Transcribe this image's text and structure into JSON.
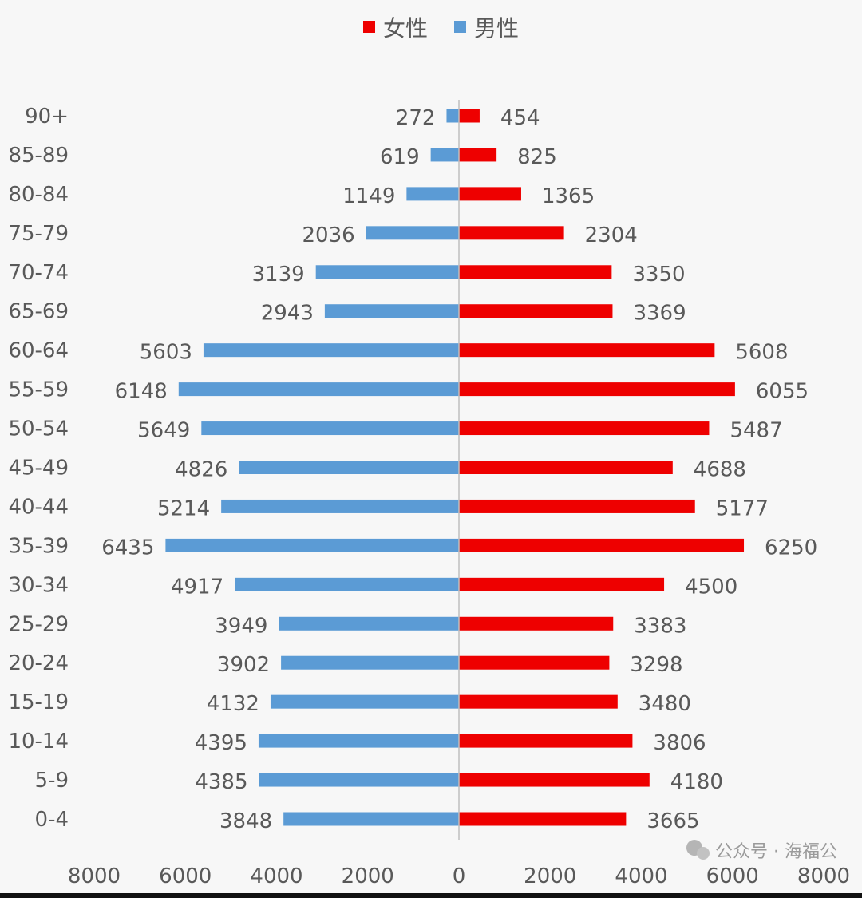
{
  "chart_data": {
    "type": "bar",
    "orientation": "horizontal",
    "subtype": "population-pyramid",
    "categories": [
      "90+",
      "85-89",
      "80-84",
      "75-79",
      "70-74",
      "65-69",
      "60-64",
      "55-59",
      "50-54",
      "45-49",
      "40-44",
      "35-39",
      "30-34",
      "25-29",
      "20-24",
      "15-19",
      "10-14",
      "5-9",
      "0-4"
    ],
    "series": [
      {
        "name": "女性",
        "color": "#ee0000",
        "side": "right",
        "values": [
          454,
          825,
          1365,
          2304,
          3350,
          3369,
          5608,
          6055,
          5487,
          4688,
          5177,
          6250,
          4500,
          3383,
          3298,
          3480,
          3806,
          4180,
          3665
        ]
      },
      {
        "name": "男性",
        "color": "#5b9bd5",
        "side": "left",
        "values": [
          272,
          619,
          1149,
          2036,
          3139,
          2943,
          5603,
          6148,
          5649,
          4826,
          5214,
          6435,
          4917,
          3949,
          3902,
          4132,
          4395,
          4385,
          3848
        ]
      }
    ],
    "xlim": [
      -8000,
      8000
    ],
    "xticks": [
      "8000",
      "6000",
      "4000",
      "2000",
      "0",
      "2000",
      "4000",
      "6000",
      "8000"
    ],
    "legend_position": "top",
    "grid": false,
    "data_labels": true,
    "watermark": "公众号 · 海福公"
  }
}
